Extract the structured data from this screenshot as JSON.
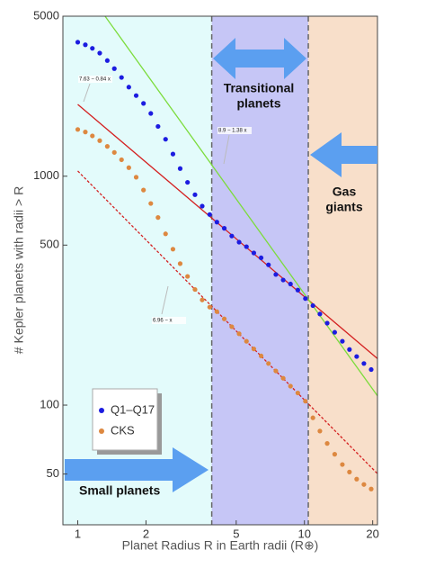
{
  "chart_data": {
    "type": "scatter",
    "log_x": true,
    "log_y": true,
    "x_label": "Planet Radius R in Earth radii (R⊕)",
    "y_label": "# Kepler planets with radii > R",
    "xlim": [
      0.86,
      21
    ],
    "ylim": [
      30,
      5000
    ],
    "xticks": [
      1,
      2,
      5,
      10,
      20
    ],
    "yticks": [
      50,
      100,
      500,
      1000,
      5000
    ],
    "dividers": [
      3.9,
      10.4
    ],
    "region_colors": [
      "#e3fbfb",
      "#c6c6f6",
      "#f8dfca"
    ],
    "x": [
      1,
      1.08,
      1.16,
      1.25,
      1.35,
      1.45,
      1.56,
      1.68,
      1.81,
      1.95,
      2.1,
      2.26,
      2.44,
      2.63,
      2.83,
      3.05,
      3.29,
      3.54,
      3.82,
      4.11,
      4.43,
      4.78,
      5.15,
      5.55,
      5.98,
      6.44,
      6.94,
      7.48,
      8.06,
      8.68,
      9.35,
      10.1,
      10.9,
      11.7,
      12.6,
      13.6,
      14.7,
      15.8,
      17,
      18.3,
      19.7
    ],
    "series": [
      {
        "name": "Q1–Q17",
        "color": "#1c1ce0",
        "values": [
          3850,
          3750,
          3620,
          3450,
          3200,
          2950,
          2700,
          2450,
          2250,
          2080,
          1880,
          1650,
          1450,
          1250,
          1080,
          940,
          830,
          740,
          680,
          630,
          592,
          548,
          515,
          492,
          462,
          440,
          410,
          372,
          352,
          338,
          318,
          292,
          272,
          250,
          228,
          208,
          190,
          175,
          163,
          152,
          143
        ]
      },
      {
        "name": "CKS",
        "color": "#dd8840",
        "values": [
          1600,
          1560,
          1500,
          1430,
          1350,
          1270,
          1180,
          1090,
          990,
          870,
          760,
          660,
          560,
          480,
          415,
          365,
          320,
          288,
          268,
          256,
          238,
          220,
          205,
          190,
          176,
          164,
          152,
          141,
          131,
          121,
          113,
          104,
          88,
          77,
          68,
          61,
          55,
          51,
          47.5,
          45,
          43
        ]
      }
    ],
    "fits": [
      {
        "label": "7.63 − 0.84 x",
        "intercept": 7.63,
        "slope": -0.84,
        "color": "#d42020",
        "dashed": false
      },
      {
        "label": "8.9 − 1.38 x",
        "intercept": 8.9,
        "slope": -1.38,
        "color": "#7cdc3c",
        "dashed": false
      },
      {
        "label": "6.96 − x",
        "intercept": 6.96,
        "slope": -1,
        "color": "#d42020",
        "dashed": true
      }
    ],
    "annotations": {
      "transitional": [
        "Transitional",
        "planets"
      ],
      "gas": [
        "Gas",
        "giants"
      ],
      "small": [
        "Small planets"
      ]
    }
  }
}
